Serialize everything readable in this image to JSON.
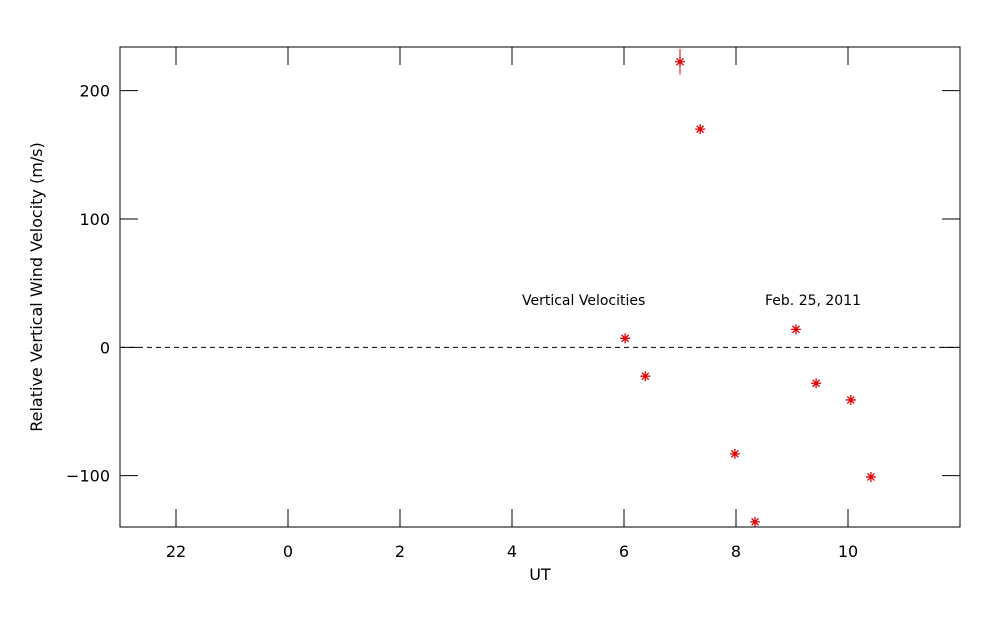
{
  "chart_data": {
    "type": "scatter",
    "x_label": "UT",
    "y_label": "Relative Vertical Wind Velocity (m/s)",
    "annotations": [
      "Vertical Velocities",
      "Feb. 25, 2011"
    ],
    "x": [
      30.02,
      30.38,
      31.0,
      31.36,
      31.98,
      32.34,
      33.07,
      33.43,
      34.05,
      34.41
    ],
    "series": [
      {
        "color": "#e00000",
        "values": [
          7,
          -22.5,
          222.5,
          170,
          -83,
          -136,
          14,
          -28,
          -41,
          -101
        ],
        "errors": [
          2,
          2,
          10,
          2,
          2,
          2,
          2,
          2,
          2,
          2
        ]
      }
    ],
    "reference_line": 0,
    "xlim": [
      21,
      36
    ],
    "ylim": [
      -140,
      234
    ],
    "xticks": [
      22,
      {
        "value": 24,
        "label": "0"
      },
      {
        "value": 26,
        "label": "2"
      },
      {
        "value": 28,
        "label": "4"
      },
      {
        "value": 30,
        "label": "6"
      },
      {
        "value": 32,
        "label": "8"
      },
      {
        "value": 34,
        "label": "10"
      }
    ],
    "yticks": [
      {
        "value": -100,
        "label": "−100"
      },
      0,
      100,
      200
    ]
  }
}
